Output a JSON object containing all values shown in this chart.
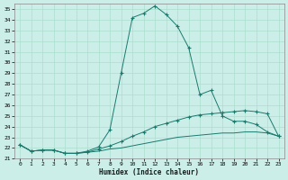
{
  "xlabel": "Humidex (Indice chaleur)",
  "bg_color": "#cceee8",
  "grid_color": "#aaddcc",
  "line_color": "#1a7a6e",
  "xlim": [
    -0.5,
    23.5
  ],
  "ylim": [
    21,
    35.5
  ],
  "yticks": [
    21,
    22,
    23,
    24,
    25,
    26,
    27,
    28,
    29,
    30,
    31,
    32,
    33,
    34,
    35
  ],
  "xticks": [
    0,
    1,
    2,
    3,
    4,
    5,
    6,
    7,
    8,
    9,
    10,
    11,
    12,
    13,
    14,
    15,
    16,
    17,
    18,
    19,
    20,
    21,
    22,
    23
  ],
  "series1_x": [
    0,
    1,
    2,
    3,
    4,
    5,
    6,
    7,
    8,
    9,
    10,
    11,
    12,
    13,
    14,
    15,
    16,
    17,
    18,
    19,
    20,
    21,
    22,
    23
  ],
  "series1_y": [
    22.3,
    21.7,
    21.8,
    21.8,
    21.5,
    21.5,
    21.7,
    22.1,
    23.7,
    29.0,
    34.2,
    34.6,
    35.3,
    34.5,
    33.4,
    31.4,
    27.0,
    27.4,
    25.0,
    24.5,
    24.5,
    24.2,
    23.5,
    23.1
  ],
  "series2_x": [
    0,
    1,
    2,
    3,
    4,
    5,
    6,
    7,
    8,
    9,
    10,
    11,
    12,
    13,
    14,
    15,
    16,
    17,
    18,
    19,
    20,
    21,
    22,
    23
  ],
  "series2_y": [
    22.3,
    21.7,
    21.8,
    21.8,
    21.5,
    21.5,
    21.6,
    21.9,
    22.2,
    22.6,
    23.1,
    23.5,
    24.0,
    24.3,
    24.6,
    24.9,
    25.1,
    25.2,
    25.3,
    25.4,
    25.5,
    25.4,
    25.2,
    23.1
  ],
  "series3_x": [
    0,
    1,
    2,
    3,
    4,
    5,
    6,
    7,
    8,
    9,
    10,
    11,
    12,
    13,
    14,
    15,
    16,
    17,
    18,
    19,
    20,
    21,
    22,
    23
  ],
  "series3_y": [
    22.3,
    21.7,
    21.8,
    21.8,
    21.5,
    21.5,
    21.6,
    21.7,
    21.9,
    22.0,
    22.2,
    22.4,
    22.6,
    22.8,
    23.0,
    23.1,
    23.2,
    23.3,
    23.4,
    23.4,
    23.5,
    23.5,
    23.4,
    23.1
  ]
}
